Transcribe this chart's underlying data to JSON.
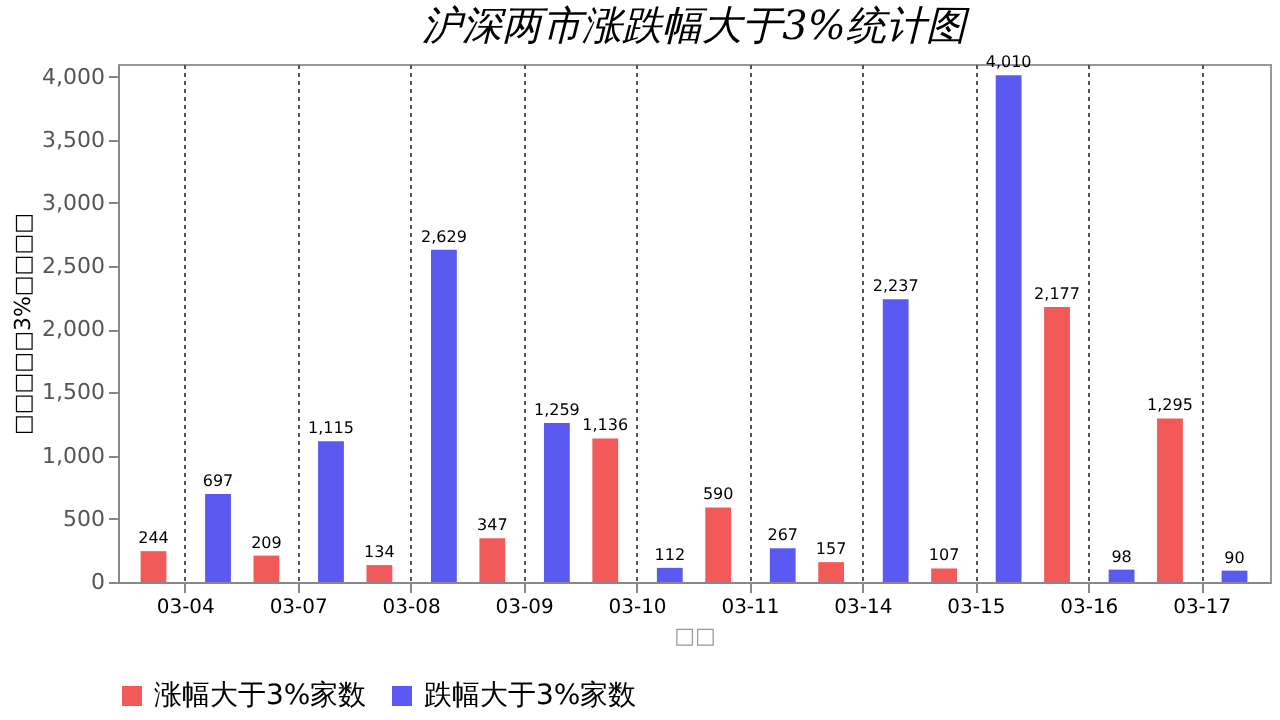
{
  "chart_data": {
    "type": "bar",
    "title": "沪深两市涨跌幅大于3%统计图",
    "xlabel": "□□",
    "ylabel": "□□□□□3%□□□□",
    "categories": [
      "03-04",
      "03-07",
      "03-08",
      "03-09",
      "03-10",
      "03-11",
      "03-14",
      "03-15",
      "03-16",
      "03-17"
    ],
    "series": [
      {
        "name": "涨幅大于3%家数",
        "color": "#f25a5a",
        "values": [
          244,
          209,
          134,
          347,
          1136,
          590,
          157,
          107,
          2177,
          1295
        ],
        "value_labels": [
          "244",
          "209",
          "134",
          "347",
          "1,136",
          "590",
          "157",
          "107",
          "2,177",
          "1,295"
        ]
      },
      {
        "name": "跌幅大于3%家数",
        "color": "#5a5af2",
        "values": [
          697,
          1115,
          2629,
          1259,
          112,
          267,
          2237,
          4010,
          98,
          90
        ],
        "value_labels": [
          "697",
          "1,115",
          "2,629",
          "1,259",
          "112",
          "267",
          "2,237",
          "4,010",
          "98",
          "90"
        ]
      }
    ],
    "ylim": [
      0,
      4100
    ],
    "yticks": [
      0,
      500,
      {
        "value": 1000,
        "label": "1,000"
      },
      {
        "value": 1500,
        "label": "1,500"
      },
      {
        "value": 2000,
        "label": "2,000"
      },
      {
        "value": 2500,
        "label": "2,500"
      },
      {
        "value": 3000,
        "label": "3,000"
      },
      {
        "value": 3500,
        "label": "3,500"
      },
      {
        "value": 4000,
        "label": "4,000"
      }
    ],
    "grid": "x",
    "legend": "bottom"
  }
}
